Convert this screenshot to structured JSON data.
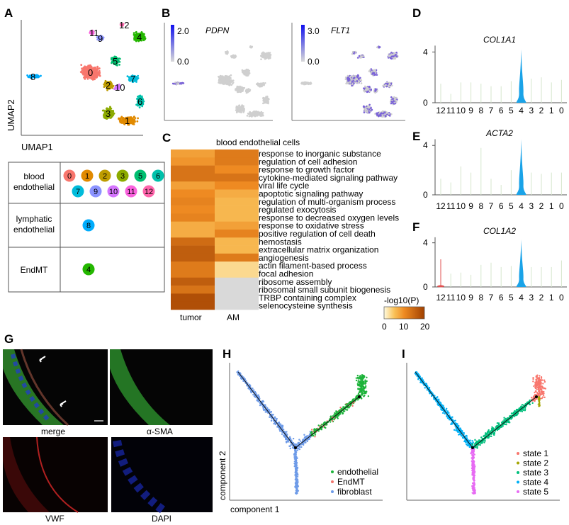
{
  "panel_letters": [
    "A",
    "B",
    "C",
    "D",
    "E",
    "F",
    "G",
    "H",
    "I"
  ],
  "chart_data": [
    {
      "panel": "A",
      "type": "scatter",
      "xlabel": "UMAP1",
      "ylabel": "UMAP2",
      "clusters": [
        "0",
        "1",
        "2",
        "3",
        "4",
        "5",
        "6",
        "7",
        "8",
        "9",
        "10",
        "11",
        "12"
      ],
      "colors": [
        "#F8766D",
        "#E18A00",
        "#BE9C00",
        "#8CAB00",
        "#24B700",
        "#00BE70",
        "#00C1AB",
        "#00BBDA",
        "#00ACFC",
        "#8B93FF",
        "#D575FE",
        "#F962DD",
        "#FF65AC"
      ]
    },
    {
      "panel": "A-table",
      "type": "table",
      "rows": [
        {
          "category": [
            "blood",
            "endothelial"
          ],
          "clusters": [
            "0",
            "1",
            "2",
            "3",
            "5",
            "6",
            "7",
            "9",
            "10",
            "11",
            "12"
          ]
        },
        {
          "category": [
            "lymphatic",
            "endothelial"
          ],
          "clusters": [
            "8"
          ]
        },
        {
          "category": [
            "EndMT"
          ],
          "clusters": [
            "4"
          ]
        }
      ]
    },
    {
      "panel": "B1",
      "type": "scatter",
      "title": "PDPN",
      "color_scale": {
        "min": "0.0",
        "max": "2.0",
        "low": "#d9d9d9",
        "high": "#0000ee"
      },
      "expressing_clusters": [
        "8"
      ]
    },
    {
      "panel": "B2",
      "type": "scatter",
      "title": "FLT1",
      "color_scale": {
        "min": "0.0",
        "max": "3.0",
        "low": "#d9d9d9",
        "high": "#0000ee"
      },
      "expressing_clusters": [
        "0",
        "1",
        "2",
        "3",
        "4",
        "5",
        "6",
        "7",
        "9",
        "10",
        "11",
        "12"
      ]
    },
    {
      "panel": "C",
      "type": "heatmap",
      "title": "blood endothelial cells",
      "columns": [
        "tumor",
        "AM"
      ],
      "rows": [
        "response to inorganic substance",
        "regulation of cell adhesion",
        "response to growth factor",
        "cytokine-mediated signaling pathway",
        "viral life cycle",
        "apoptotic signaling pathway",
        "regulation of multi-organism process",
        "regulated exocytosis",
        "response to decreased oxygen levels",
        "response to oxidative stress",
        "positive regulation of cell death",
        "hemostasis",
        "extracellular matrix organization",
        "angiogenesis",
        "actin filament-based process",
        "focal adhesion",
        "ribosome assembly",
        "ribosomal small subunit biogenesis",
        "TRBP containing complex",
        "selenocysteine synthesis"
      ],
      "values": [
        [
          8,
          12
        ],
        [
          9,
          12
        ],
        [
          13,
          10
        ],
        [
          13,
          13
        ],
        [
          8,
          10
        ],
        [
          10,
          7
        ],
        [
          11,
          6
        ],
        [
          10,
          6
        ],
        [
          11,
          6
        ],
        [
          7,
          8
        ],
        [
          7,
          11
        ],
        [
          14,
          6
        ],
        [
          16,
          6
        ],
        [
          16,
          12
        ],
        [
          12,
          3
        ],
        [
          12,
          3
        ],
        [
          16,
          null
        ],
        [
          13,
          null
        ],
        [
          18,
          null
        ],
        [
          18,
          null
        ]
      ],
      "legend_title": "-log10(P)",
      "legend_ticks": [
        "0",
        "10",
        "20"
      ],
      "range": [
        0,
        20
      ],
      "na_color": "#d9d9d9"
    },
    {
      "panel": "D",
      "type": "violin",
      "title": "COL1A1",
      "yticks": [
        "0",
        "4"
      ],
      "categories": [
        "12",
        "11",
        "10",
        "9",
        "8",
        "7",
        "6",
        "5",
        "4",
        "3",
        "2",
        "1",
        "0"
      ],
      "max_values": [
        1.5,
        0.7,
        1.6,
        1.6,
        1.5,
        1.3,
        1.3,
        1.7,
        4.2,
        1.9,
        2.0,
        1.6,
        1.8
      ]
    },
    {
      "panel": "E",
      "type": "violin",
      "title": "ACTA2",
      "yticks": [
        "0",
        "4"
      ],
      "categories": [
        "12",
        "11",
        "10",
        "9",
        "8",
        "7",
        "6",
        "5",
        "4",
        "3",
        "2",
        "1",
        "0"
      ],
      "max_values": [
        1.3,
        1.0,
        2.3,
        1.8,
        3.8,
        1.3,
        0.8,
        2.0,
        4.5,
        1.8,
        1.7,
        1.8,
        1.8
      ]
    },
    {
      "panel": "F",
      "type": "violin",
      "title": "COL1A2",
      "yticks": [
        "0",
        "4"
      ],
      "categories": [
        "12",
        "11",
        "10",
        "9",
        "8",
        "7",
        "6",
        "5",
        "4",
        "3",
        "2",
        "1",
        "0"
      ],
      "max_values": [
        2.5,
        1.2,
        1.3,
        1.1,
        2.0,
        2.2,
        1.8,
        1.9,
        4.3,
        1.8,
        1.8,
        1.8,
        2.4
      ]
    },
    {
      "panel": "H",
      "type": "scatter",
      "xlabel": "component 1",
      "ylabel": "component 2",
      "legend": [
        {
          "name": "endothelial",
          "color": "#1DB33A"
        },
        {
          "name": "EndMT",
          "color": "#F0766D"
        },
        {
          "name": "fibroblast",
          "color": "#6E9BE8"
        }
      ]
    },
    {
      "panel": "I",
      "type": "scatter",
      "legend": [
        {
          "name": "state 1",
          "color": "#F8766D"
        },
        {
          "name": "state 2",
          "color": "#A3A500"
        },
        {
          "name": "state 3",
          "color": "#00BF7D"
        },
        {
          "name": "state 4",
          "color": "#00B0F6"
        },
        {
          "name": "state 5",
          "color": "#E76BF3"
        }
      ]
    }
  ],
  "microscopy": {
    "panels": [
      "merge",
      "α-SMA",
      "VWF",
      "DAPI"
    ]
  }
}
